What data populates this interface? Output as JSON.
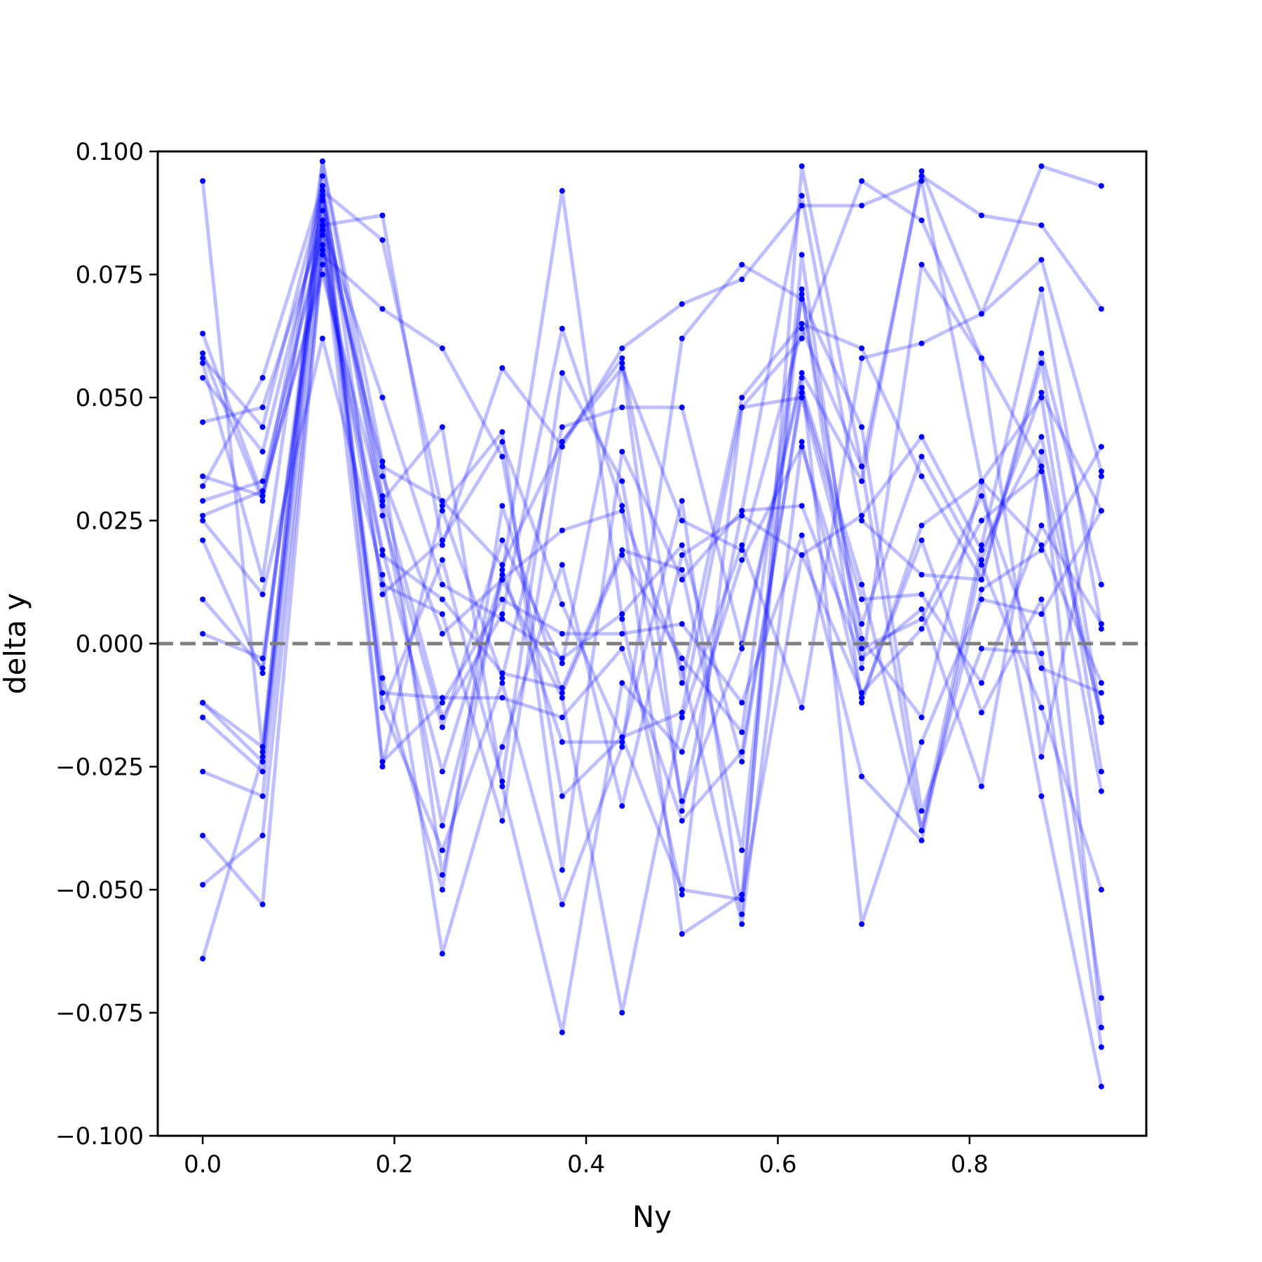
{
  "chart_data": {
    "type": "line",
    "title": "",
    "xlabel": "Ny",
    "ylabel": "delta y",
    "xlim": [
      -0.0469,
      0.9844
    ],
    "ylim": [
      -0.1,
      0.1
    ],
    "xticks": [
      "0.0",
      "0.2",
      "0.4",
      "0.6",
      "0.8"
    ],
    "yticks": [
      "−0.100",
      "−0.075",
      "−0.050",
      "−0.025",
      "0.000",
      "0.025",
      "0.050",
      "0.075",
      "0.100"
    ],
    "reference_line": {
      "y": 0.0,
      "style": "dashed",
      "color": "#808080"
    },
    "series_color": "#0000ff",
    "line_alpha": 0.25,
    "grid": false,
    "x": [
      0.0,
      0.0625,
      0.125,
      0.1875,
      0.25,
      0.3125,
      0.375,
      0.4375,
      0.5,
      0.5625,
      0.625,
      0.6875,
      0.75,
      0.8125,
      0.875,
      0.9375
    ],
    "series": [
      {
        "values": [
          0.094,
          -0.022,
          0.098,
          0.037,
          -0.047,
          0.015,
          -0.02,
          -0.02,
          0.029,
          -0.055,
          0.097,
          0.036,
          0.095,
          0.087,
          0.085,
          0.068
        ]
      },
      {
        "values": [
          0.063,
          0.03,
          0.092,
          0.082,
          0.027,
          -0.007,
          0.044,
          0.048,
          0.048,
          0.0,
          0.055,
          0.033,
          0.096,
          0.067,
          0.097,
          0.093
        ]
      },
      {
        "values": [
          0.059,
          0.029,
          0.085,
          0.036,
          0.029,
          0.016,
          0.041,
          0.058,
          -0.008,
          0.05,
          0.065,
          0.06,
          0.034,
          0.013,
          0.059,
          0.012
        ]
      },
      {
        "values": [
          0.058,
          0.044,
          0.092,
          0.026,
          -0.017,
          0.021,
          -0.004,
          0.057,
          -0.034,
          0.027,
          0.091,
          0.025,
          0.014,
          0.013,
          0.057,
          -0.015
        ]
      },
      {
        "values": [
          0.057,
          0.013,
          0.098,
          0.03,
          -0.015,
          0.006,
          0.064,
          0.028,
          -0.059,
          -0.051,
          0.079,
          -0.005,
          0.077,
          0.058,
          0.036,
          -0.015
        ]
      },
      {
        "values": [
          0.054,
          0.039,
          0.088,
          0.034,
          0.002,
          0.013,
          -0.011,
          -0.075,
          -0.015,
          0.02,
          -0.013,
          0.058,
          0.061,
          0.067,
          0.078,
          0.035
        ]
      },
      {
        "values": [
          0.045,
          0.048,
          0.085,
          0.05,
          0.012,
          0.005,
          -0.003,
          0.006,
          0.02,
          -0.024,
          0.052,
          0.012,
          -0.038,
          0.02,
          0.072,
          0.003
        ]
      },
      {
        "values": [
          0.034,
          0.03,
          0.077,
          0.018,
          0.009,
          -0.006,
          -0.009,
          0.019,
          0.015,
          -0.042,
          0.072,
          -0.012,
          0.024,
          0.033,
          -0.031,
          -0.09
        ]
      },
      {
        "values": [
          0.032,
          0.054,
          0.093,
          -0.013,
          -0.042,
          -0.008,
          -0.053,
          -0.021,
          0.062,
          0.077,
          0.07,
          0.044,
          -0.034,
          -0.001,
          -0.002,
          -0.082
        ]
      },
      {
        "values": [
          0.029,
          0.033,
          0.083,
          -0.025,
          0.028,
          0.043,
          -0.046,
          0.039,
          0.013,
          0.027,
          0.028,
          -0.003,
          0.007,
          -0.029,
          0.039,
          -0.078
        ]
      },
      {
        "values": [
          0.026,
          0.031,
          0.075,
          0.028,
          -0.037,
          0.013,
          0.023,
          0.027,
          -0.005,
          -0.057,
          0.041,
          -0.011,
          0.021,
          -0.014,
          0.009,
          -0.072
        ]
      },
      {
        "values": [
          0.025,
          0.01,
          0.062,
          0.014,
          -0.063,
          -0.021,
          0.016,
          -0.033,
          0.018,
          0.026,
          0.018,
          -0.01,
          0.003,
          0.025,
          0.035,
          -0.03
        ]
      },
      {
        "values": [
          0.021,
          -0.006,
          0.091,
          0.029,
          0.044,
          -0.029,
          -0.079,
          -0.008,
          -0.022,
          0.017,
          0.04,
          -0.001,
          0.005,
          0.03,
          -0.005,
          -0.01
        ]
      },
      {
        "values": [
          0.009,
          -0.005,
          0.086,
          -0.007,
          -0.05,
          0.028,
          -0.01,
          0.018,
          -0.003,
          -0.018,
          0.071,
          0.001,
          -0.015,
          0.033,
          0.02,
          -0.008
        ]
      },
      {
        "values": [
          0.002,
          -0.003,
          0.084,
          -0.01,
          -0.011,
          -0.011,
          -0.015,
          -0.001,
          -0.036,
          -0.022,
          0.051,
          0.009,
          0.01,
          -0.008,
          0.024,
          0.004
        ]
      },
      {
        "values": [
          -0.012,
          -0.021,
          0.095,
          0.01,
          0.021,
          0.041,
          0.008,
          -0.019,
          -0.05,
          -0.052,
          0.018,
          0.026,
          0.042,
          0.019,
          0.042,
          -0.016
        ]
      },
      {
        "values": [
          -0.012,
          -0.024,
          0.093,
          -0.024,
          -0.012,
          0.009,
          0.002,
          0.002,
          0.004,
          -0.012,
          0.022,
          -0.027,
          -0.04,
          0.017,
          0.051,
          0.027
        ]
      },
      {
        "values": [
          -0.015,
          -0.026,
          0.09,
          -0.013,
          0.017,
          -0.028,
          0.055,
          0.033,
          -0.032,
          -0.001,
          0.054,
          -0.057,
          -0.02,
          0.009,
          0.006,
          0.027
        ]
      },
      {
        "values": [
          -0.026,
          -0.031,
          0.081,
          0.019,
          -0.026,
          0.014,
          0.092,
          0.005,
          -0.051,
          0.048,
          0.05,
          0.004,
          0.038,
          0.016,
          -0.013,
          -0.05
        ]
      },
      {
        "values": [
          -0.039,
          -0.053,
          0.08,
          0.012,
          0.006,
          -0.036,
          0.041,
          0.056,
          0.025,
          0.019,
          0.064,
          0.036,
          -0.038,
          0.011,
          0.019,
          0.04
        ]
      },
      {
        "values": [
          -0.049,
          -0.039,
          0.079,
          0.068,
          0.06,
          0.038,
          -0.031,
          -0.019,
          -0.014,
          0.048,
          0.062,
          0.094,
          0.086,
          0.058,
          -0.023,
          0.034
        ]
      },
      {
        "values": [
          -0.064,
          -0.023,
          0.085,
          0.087,
          0.02,
          0.056,
          0.04,
          0.06,
          0.069,
          0.074,
          0.089,
          0.089,
          0.094,
          0.033,
          0.05,
          -0.026
        ]
      }
    ]
  }
}
